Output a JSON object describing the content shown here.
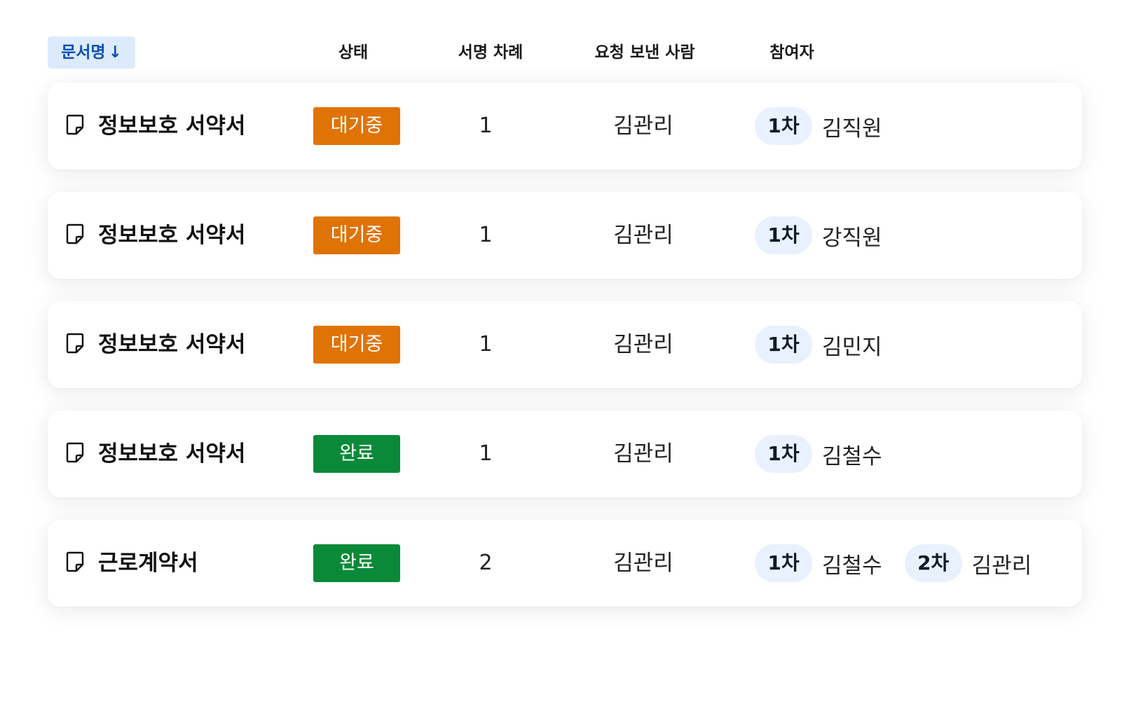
{
  "header": {
    "sort_label": "문서명",
    "sort_arrow": "↓",
    "status": "상태",
    "sign_order": "서명 차례",
    "sender": "요청 보낸 사람",
    "participants": "참여자"
  },
  "colors": {
    "pending": "#e07306",
    "done": "#0a8a38",
    "sort_bg": "#dceafb",
    "sort_text": "#0b4fb3",
    "round_pill_bg": "#e8f1fd"
  },
  "icons": {
    "document": "document-icon",
    "sort": "arrow-down-icon"
  },
  "rows": [
    {
      "name": "정보보호 서약서",
      "status": "대기중",
      "status_type": "pending",
      "order": "1",
      "sender": "김관리",
      "participants": [
        {
          "round": "1차",
          "name": "김직원"
        }
      ]
    },
    {
      "name": "정보보호 서약서",
      "status": "대기중",
      "status_type": "pending",
      "order": "1",
      "sender": "김관리",
      "participants": [
        {
          "round": "1차",
          "name": "강직원"
        }
      ]
    },
    {
      "name": "정보보호 서약서",
      "status": "대기중",
      "status_type": "pending",
      "order": "1",
      "sender": "김관리",
      "participants": [
        {
          "round": "1차",
          "name": "김민지"
        }
      ]
    },
    {
      "name": "정보보호 서약서",
      "status": "완료",
      "status_type": "done",
      "order": "1",
      "sender": "김관리",
      "participants": [
        {
          "round": "1차",
          "name": "김철수"
        }
      ]
    },
    {
      "name": "근로계약서",
      "status": "완료",
      "status_type": "done",
      "order": "2",
      "sender": "김관리",
      "participants": [
        {
          "round": "1차",
          "name": "김철수"
        },
        {
          "round": "2차",
          "name": "김관리"
        }
      ]
    }
  ]
}
